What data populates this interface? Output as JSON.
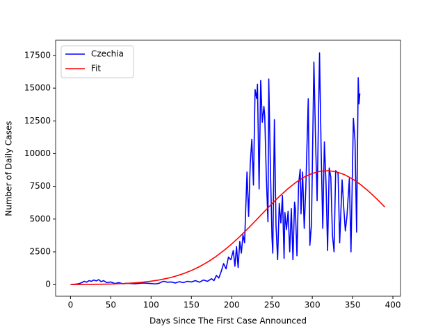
{
  "chart_data": {
    "type": "line",
    "xlabel": "Days Since The First Case Announced",
    "ylabel": "Number of Daily Cases",
    "xlim": [
      -18.45,
      409.45
    ],
    "ylim": [
      -890,
      18660
    ],
    "xticks": [
      0,
      50,
      100,
      150,
      200,
      250,
      300,
      350,
      400
    ],
    "yticks": [
      0,
      2500,
      5000,
      7500,
      10000,
      12500,
      15000,
      17500
    ],
    "grid": false,
    "legend": "upper left",
    "series": [
      {
        "name": "Czechia",
        "color": "#0000ff",
        "x": [
          1,
          5,
          10,
          14,
          17,
          20,
          23,
          26,
          29,
          32,
          35,
          38,
          41,
          45,
          50,
          55,
          60,
          65,
          70,
          80,
          90,
          100,
          105,
          110,
          113,
          116,
          120,
          125,
          130,
          135,
          140,
          145,
          150,
          155,
          160,
          165,
          170,
          175,
          178,
          181,
          184,
          187,
          190,
          193,
          196,
          199,
          202,
          204,
          206,
          208,
          210,
          212,
          214,
          216,
          219,
          221,
          223,
          225,
          227,
          229,
          231,
          232,
          234,
          236,
          238,
          240,
          241,
          243,
          245,
          246,
          248,
          250,
          251,
          253,
          255,
          257,
          259,
          261,
          263,
          265,
          266,
          268,
          270,
          272,
          274,
          276,
          278,
          279,
          281,
          283,
          285,
          286,
          288,
          290,
          292,
          295,
          297,
          299,
          302,
          304,
          306,
          309,
          311,
          313,
          315,
          317,
          319,
          321,
          323,
          325,
          327,
          329,
          332,
          334,
          337,
          339,
          341,
          343,
          346,
          348,
          351,
          353,
          355,
          357,
          358,
          359
        ],
        "values": [
          0,
          20,
          60,
          150,
          250,
          180,
          300,
          250,
          350,
          280,
          380,
          220,
          300,
          150,
          200,
          80,
          150,
          60,
          100,
          60,
          120,
          80,
          50,
          100,
          200,
          250,
          180,
          200,
          120,
          220,
          150,
          250,
          200,
          300,
          180,
          350,
          250,
          450,
          300,
          700,
          500,
          1000,
          1600,
          1200,
          2100,
          1900,
          2600,
          1400,
          2900,
          1300,
          3300,
          2400,
          3800,
          3200,
          8600,
          5200,
          9200,
          11100,
          7600,
          14900,
          14200,
          15300,
          7300,
          15600,
          12400,
          13600,
          12900,
          8200,
          4800,
          15700,
          9000,
          3600,
          2400,
          12600,
          4500,
          1900,
          6200,
          4700,
          6800,
          2000,
          5500,
          4200,
          5600,
          2500,
          5800,
          1900,
          6300,
          5800,
          2200,
          7700,
          8800,
          5400,
          8600,
          4300,
          7400,
          14200,
          3000,
          4600,
          17000,
          11200,
          6400,
          17700,
          10200,
          4300,
          10900,
          7800,
          2600,
          8900,
          8200,
          3800,
          2500,
          8700,
          8500,
          3200,
          8000,
          5900,
          4100,
          5200,
          8100,
          2500,
          12700,
          11000,
          4000,
          15800,
          13800,
          14600
        ]
      },
      {
        "name": "Fit",
        "color": "#ff0000",
        "x": [
          0,
          10,
          20,
          30,
          40,
          50,
          60,
          70,
          80,
          90,
          100,
          110,
          120,
          130,
          140,
          150,
          160,
          170,
          180,
          190,
          200,
          210,
          220,
          230,
          240,
          250,
          260,
          270,
          280,
          290,
          300,
          310,
          320,
          330,
          340,
          350,
          360,
          370,
          380,
          390
        ],
        "values": [
          5,
          8,
          12,
          19,
          28,
          42,
          63,
          91,
          131,
          185,
          258,
          352,
          476,
          633,
          831,
          1074,
          1368,
          1717,
          2122,
          2585,
          3100,
          3665,
          4270,
          4901,
          5542,
          6176,
          6780,
          7334,
          7817,
          8209,
          8494,
          8659,
          8697,
          8608,
          8393,
          8064,
          7633,
          7121,
          6542,
          5920
        ]
      }
    ]
  }
}
